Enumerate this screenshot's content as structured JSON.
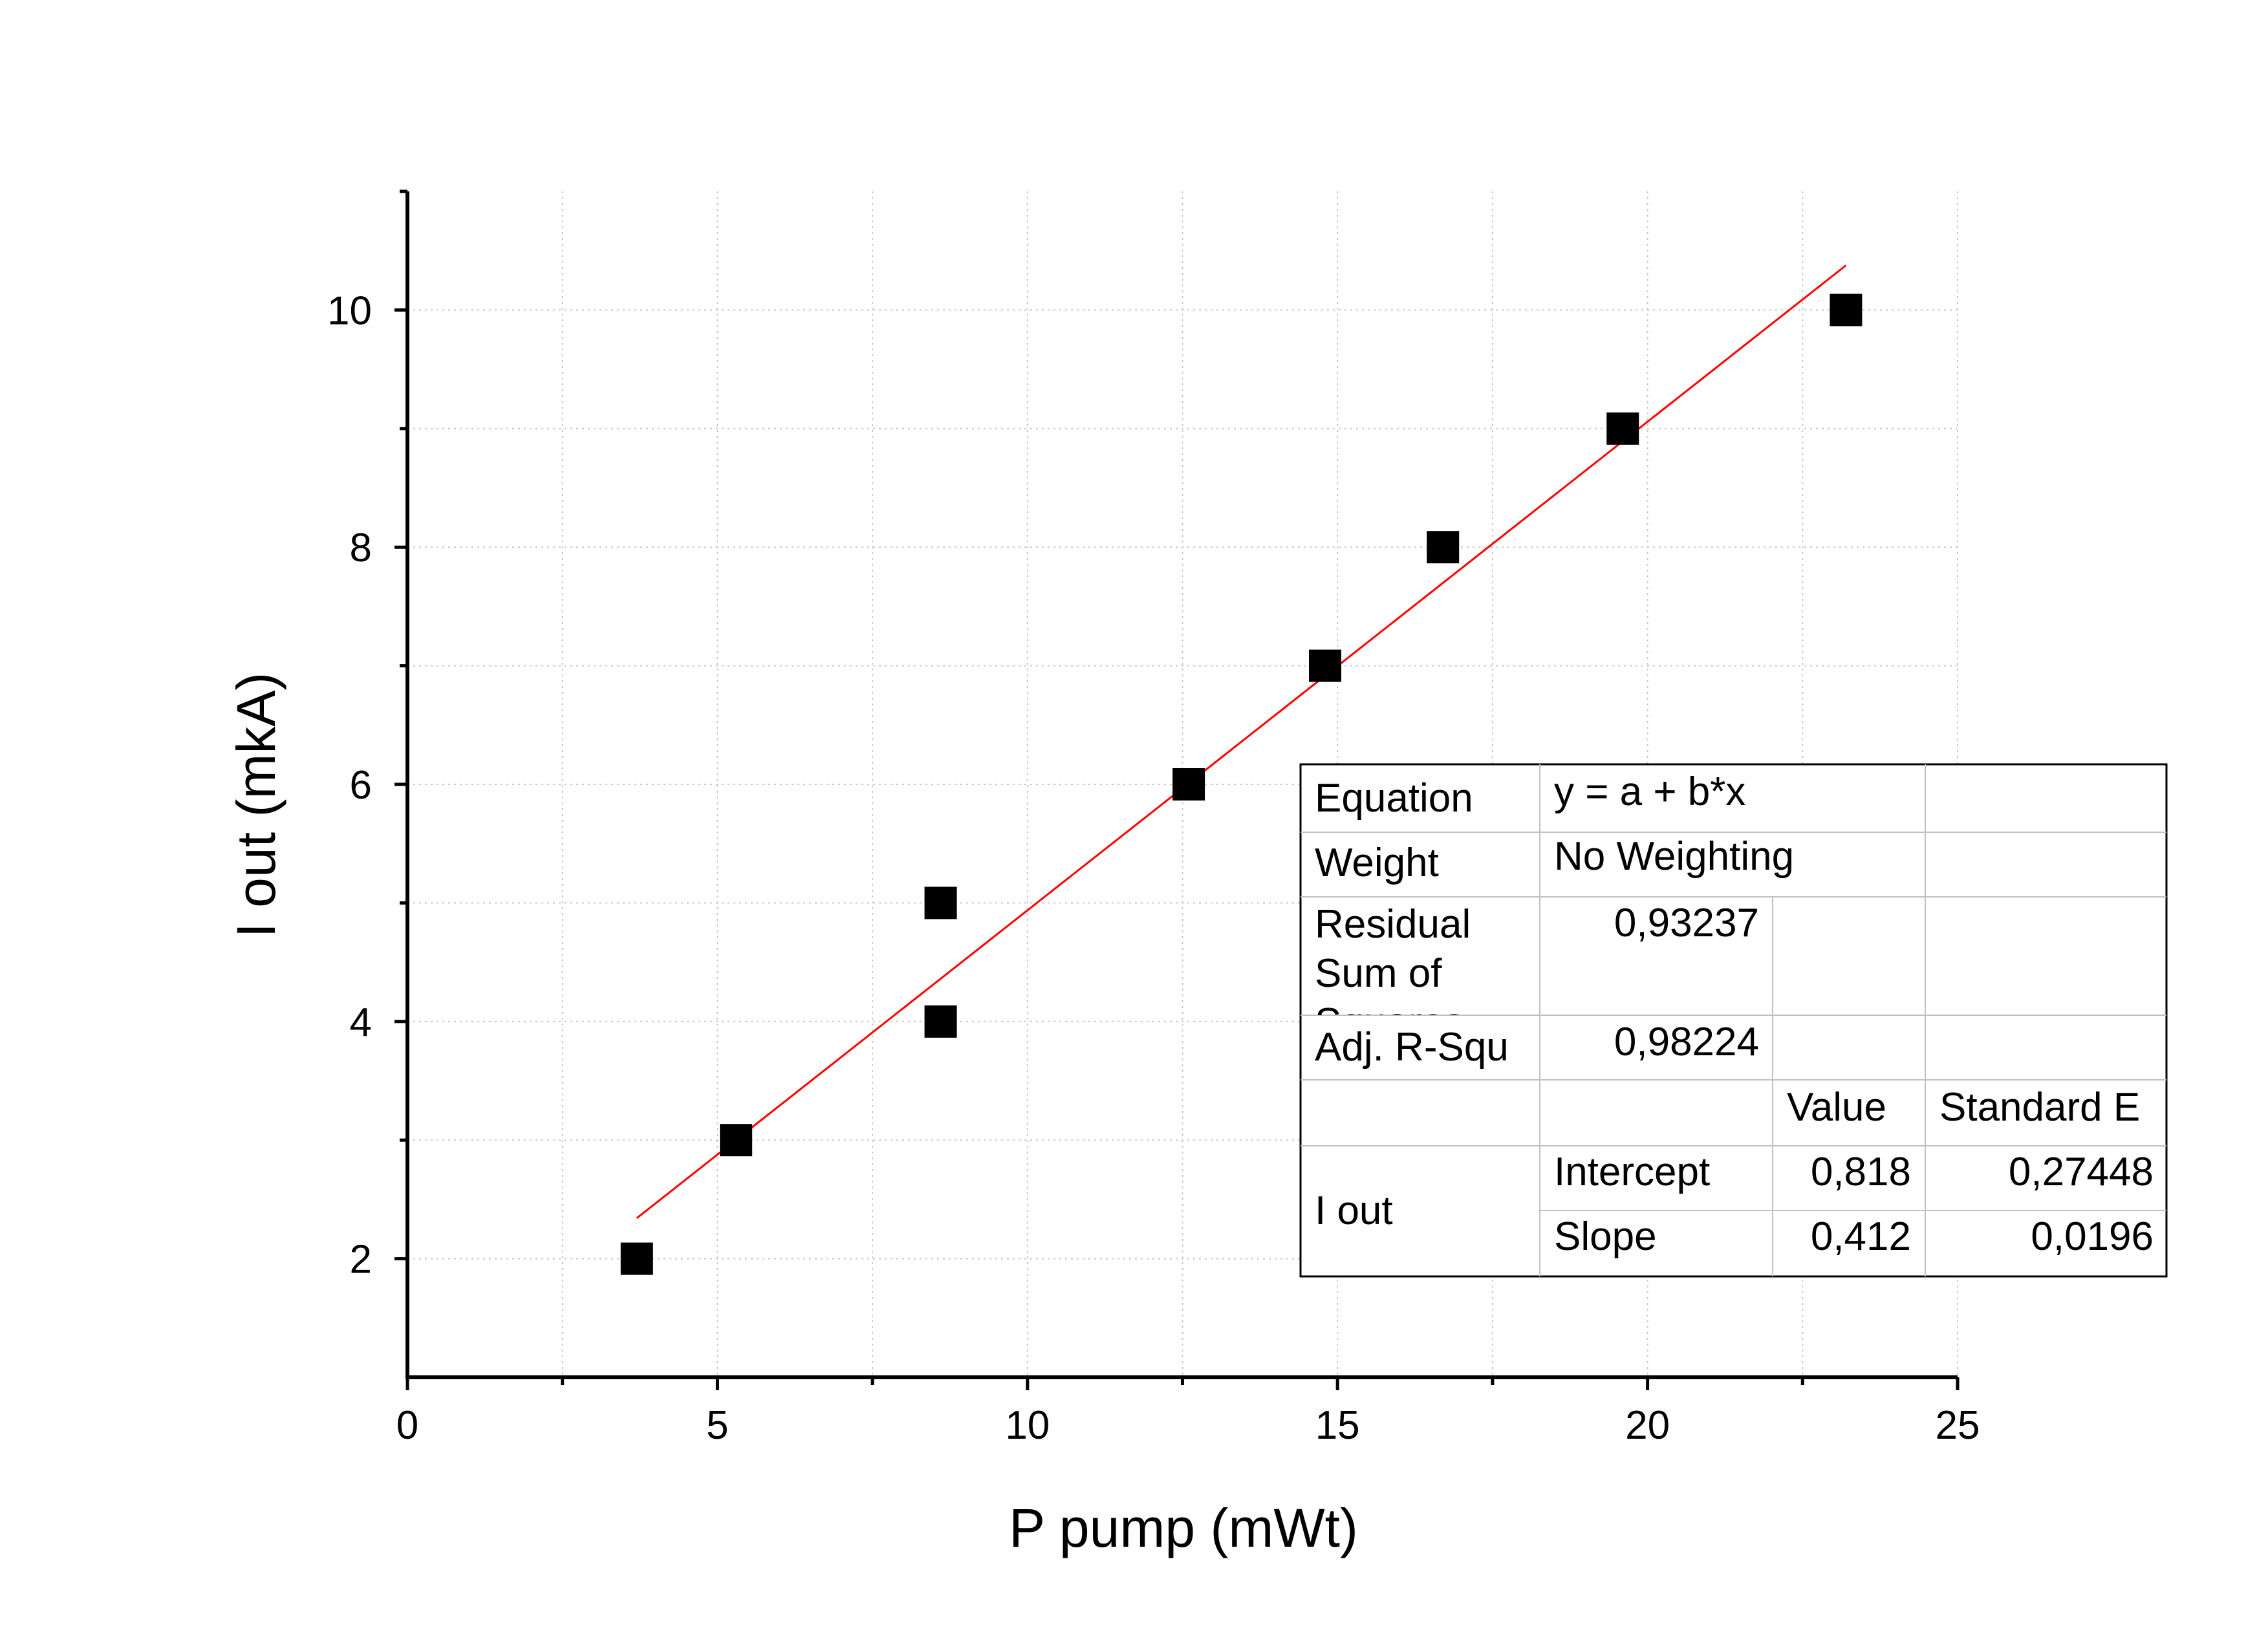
{
  "chart_data": {
    "type": "scatter",
    "xlabel": "P pump (mWt)",
    "ylabel": "I out (mkA)",
    "xlim": [
      0,
      25
    ],
    "ylim": [
      1,
      11
    ],
    "x_ticks": [
      0,
      5,
      10,
      15,
      20,
      25
    ],
    "x_tick_labels": [
      "0",
      "5",
      "10",
      "15",
      "20",
      "25"
    ],
    "x_minor_ticks": [
      2.5,
      7.5,
      12.5,
      17.5,
      22.5
    ],
    "y_ticks": [
      2,
      4,
      6,
      8,
      10
    ],
    "y_tick_labels": [
      "2",
      "4",
      "6",
      "8",
      "10"
    ],
    "y_minor_ticks": [
      3,
      5,
      7,
      9,
      11
    ],
    "grid": true,
    "grid_style": "dotted",
    "series": [
      {
        "marker": "square",
        "color": "#000000",
        "x": [
          3.7,
          5.3,
          8.6,
          8.6,
          12.6,
          14.8,
          16.7,
          19.6,
          23.2
        ],
        "y": [
          2,
          3,
          4,
          5,
          6,
          7,
          8,
          9,
          10
        ]
      }
    ],
    "fit_line": {
      "color": "#ff0000",
      "intercept": 0.818,
      "slope": 0.412,
      "x_range": [
        3.7,
        23.2
      ]
    }
  },
  "fit_table": {
    "equation_label": "Equation",
    "equation_value": "y = a + b*x",
    "weight_label": "Weight",
    "weight_value": "No Weighting",
    "rss_label_lines": [
      "Residual",
      "Sum of",
      "Squares"
    ],
    "rss_value": "0,93237",
    "adjr_label": "Adj. R-Squ",
    "adjr_value": "0,98224",
    "value_header": "Value",
    "stderr_header": "Standard E",
    "group_label": "I out",
    "intercept_label": "Intercept",
    "intercept_value": "0,818",
    "intercept_stderr": "0,27448",
    "slope_label": "Slope",
    "slope_value": "0,412",
    "slope_stderr": "0,0196"
  }
}
